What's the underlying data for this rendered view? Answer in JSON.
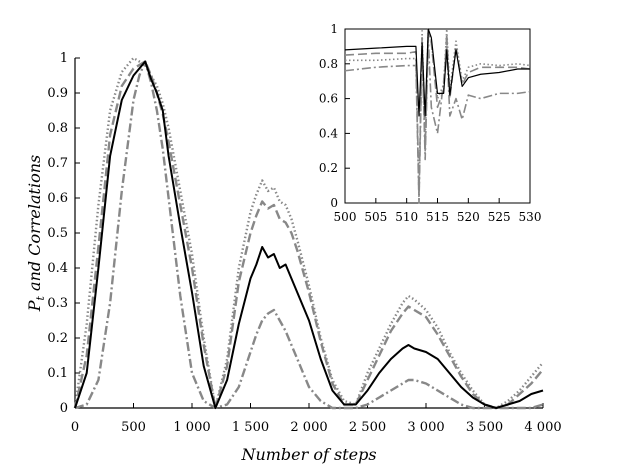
{
  "chart_data": [
    {
      "type": "line",
      "panel": "main",
      "xlabel": "Number of steps",
      "ylabel_main": "P",
      "ylabel_sub": "t",
      "ylabel_rest": " and Correlations",
      "xlim": [
        0,
        4000
      ],
      "ylim": [
        0,
        1
      ],
      "x_ticks": [
        0,
        500,
        1000,
        1500,
        2000,
        2500,
        3000,
        3500,
        4000
      ],
      "x_tick_labels": [
        "0",
        "500",
        "1 000",
        "1 500",
        "2 000",
        "2 500",
        "3 000",
        "3 500",
        "4 000"
      ],
      "y_ticks": [
        0,
        0.1,
        0.2,
        0.3,
        0.4,
        0.5,
        0.6,
        0.7,
        0.8,
        0.9,
        1
      ],
      "y_tick_labels": [
        "0",
        "0.1",
        "0.2",
        "0.3",
        "0.4",
        "0.5",
        "0.6",
        "0.7",
        "0.8",
        "0.9",
        "1"
      ],
      "grid": false,
      "legend": "none",
      "series": [
        {
          "style": "solid",
          "color": "#000000",
          "x": [
            0,
            100,
            200,
            300,
            400,
            500,
            550,
            600,
            650,
            700,
            750,
            800,
            900,
            1000,
            1100,
            1200,
            1300,
            1400,
            1500,
            1550,
            1600,
            1650,
            1700,
            1750,
            1800,
            1850,
            1900,
            2000,
            2100,
            2200,
            2300,
            2400,
            2500,
            2600,
            2700,
            2800,
            2850,
            2900,
            3000,
            3100,
            3200,
            3300,
            3400,
            3500,
            3600,
            3700,
            3800,
            3900,
            4000
          ],
          "y": [
            0,
            0.1,
            0.4,
            0.72,
            0.88,
            0.95,
            0.97,
            0.99,
            0.94,
            0.9,
            0.85,
            0.72,
            0.52,
            0.33,
            0.12,
            0.0,
            0.08,
            0.24,
            0.37,
            0.41,
            0.46,
            0.43,
            0.44,
            0.4,
            0.41,
            0.37,
            0.33,
            0.25,
            0.14,
            0.05,
            0.01,
            0.01,
            0.05,
            0.1,
            0.14,
            0.17,
            0.18,
            0.17,
            0.16,
            0.14,
            0.1,
            0.06,
            0.03,
            0.01,
            0.0,
            0.01,
            0.02,
            0.04,
            0.05
          ]
        },
        {
          "style": "dashed",
          "color": "#888888",
          "x": [
            0,
            100,
            200,
            300,
            400,
            500,
            550,
            600,
            650,
            700,
            750,
            800,
            900,
            1000,
            1100,
            1200,
            1300,
            1400,
            1500,
            1550,
            1600,
            1650,
            1700,
            1750,
            1800,
            1850,
            1900,
            2000,
            2100,
            2200,
            2300,
            2400,
            2500,
            2600,
            2700,
            2800,
            2850,
            2900,
            3000,
            3100,
            3200,
            3300,
            3400,
            3500,
            3600,
            3700,
            3800,
            3900,
            4000
          ],
          "y": [
            0,
            0.15,
            0.46,
            0.78,
            0.92,
            0.97,
            0.98,
            0.99,
            0.95,
            0.9,
            0.84,
            0.76,
            0.58,
            0.4,
            0.18,
            0.0,
            0.12,
            0.36,
            0.5,
            0.55,
            0.59,
            0.57,
            0.58,
            0.54,
            0.53,
            0.5,
            0.45,
            0.33,
            0.19,
            0.07,
            0.01,
            0.01,
            0.08,
            0.15,
            0.22,
            0.27,
            0.29,
            0.28,
            0.26,
            0.21,
            0.15,
            0.09,
            0.04,
            0.01,
            0.0,
            0.01,
            0.04,
            0.07,
            0.11
          ]
        },
        {
          "style": "dotted",
          "color": "#888888",
          "x": [
            0,
            100,
            200,
            300,
            400,
            500,
            550,
            600,
            650,
            700,
            750,
            800,
            900,
            1000,
            1100,
            1200,
            1300,
            1400,
            1500,
            1550,
            1600,
            1650,
            1700,
            1750,
            1800,
            1850,
            1900,
            2000,
            2100,
            2200,
            2300,
            2400,
            2500,
            2600,
            2700,
            2800,
            2850,
            2900,
            3000,
            3100,
            3200,
            3300,
            3400,
            3500,
            3600,
            3700,
            3800,
            3900,
            4000
          ],
          "y": [
            0,
            0.24,
            0.58,
            0.85,
            0.96,
            1.0,
            0.99,
            0.98,
            0.95,
            0.92,
            0.87,
            0.8,
            0.62,
            0.44,
            0.2,
            0.0,
            0.14,
            0.4,
            0.56,
            0.61,
            0.65,
            0.62,
            0.63,
            0.59,
            0.58,
            0.54,
            0.48,
            0.35,
            0.2,
            0.08,
            0.02,
            0.01,
            0.1,
            0.17,
            0.24,
            0.3,
            0.32,
            0.31,
            0.28,
            0.23,
            0.16,
            0.1,
            0.05,
            0.01,
            0.0,
            0.02,
            0.05,
            0.09,
            0.13
          ]
        },
        {
          "style": "dashdot",
          "color": "#888888",
          "x": [
            0,
            100,
            200,
            300,
            400,
            500,
            550,
            600,
            650,
            700,
            750,
            800,
            900,
            1000,
            1100,
            1200,
            1300,
            1400,
            1500,
            1550,
            1600,
            1650,
            1700,
            1750,
            1800,
            1850,
            1900,
            2000,
            2100,
            2200,
            2300,
            2400,
            2500,
            2600,
            2700,
            2800,
            2850,
            2900,
            3000,
            3100,
            3200,
            3300,
            3400,
            3500,
            3600,
            3700,
            3800,
            3900,
            4000
          ],
          "y": [
            0,
            0.01,
            0.08,
            0.3,
            0.62,
            0.88,
            0.95,
            0.99,
            0.93,
            0.85,
            0.74,
            0.6,
            0.32,
            0.1,
            0.02,
            0.0,
            0.01,
            0.06,
            0.16,
            0.21,
            0.25,
            0.27,
            0.28,
            0.25,
            0.22,
            0.18,
            0.14,
            0.06,
            0.02,
            0.0,
            0.0,
            0.0,
            0.01,
            0.03,
            0.05,
            0.07,
            0.08,
            0.08,
            0.07,
            0.05,
            0.03,
            0.01,
            0.0,
            0.0,
            0.0,
            0.0,
            0.0,
            0.0,
            0.01
          ]
        }
      ]
    },
    {
      "type": "line",
      "panel": "inset",
      "xlim": [
        500,
        530
      ],
      "ylim": [
        0,
        1
      ],
      "x_ticks": [
        500,
        505,
        510,
        515,
        520,
        525,
        530
      ],
      "x_tick_labels": [
        "500",
        "505",
        "510",
        "515",
        "520",
        "525",
        "530"
      ],
      "y_ticks": [
        0,
        0.2,
        0.4,
        0.6,
        0.8,
        1
      ],
      "y_tick_labels": [
        "0",
        "0.2",
        "0.4",
        "0.6",
        "0.8",
        "1"
      ],
      "grid": false,
      "legend": "none",
      "series": [
        {
          "style": "solid",
          "color": "#000000",
          "x": [
            500,
            505,
            510,
            511.5,
            512,
            512.5,
            513,
            513.5,
            514,
            515,
            516,
            516.5,
            517,
            518,
            519,
            520,
            522,
            525,
            528,
            530
          ],
          "y": [
            0.88,
            0.89,
            0.9,
            0.9,
            0.5,
            0.92,
            0.5,
            1.0,
            0.95,
            0.63,
            0.63,
            0.88,
            0.62,
            0.88,
            0.67,
            0.72,
            0.74,
            0.75,
            0.77,
            0.77
          ]
        },
        {
          "style": "dashed",
          "color": "#888888",
          "x": [
            500,
            505,
            510,
            511.5,
            512,
            512.5,
            513,
            513.5,
            514,
            515,
            516,
            516.5,
            517,
            518,
            519,
            520,
            522,
            525,
            528,
            530
          ],
          "y": [
            0.85,
            0.86,
            0.86,
            0.87,
            0.05,
            0.95,
            0.3,
            0.98,
            0.92,
            0.55,
            0.65,
            0.97,
            0.6,
            0.9,
            0.68,
            0.75,
            0.78,
            0.78,
            0.78,
            0.77
          ]
        },
        {
          "style": "dotted",
          "color": "#888888",
          "x": [
            500,
            505,
            510,
            511.5,
            512,
            512.5,
            513,
            513.5,
            514,
            515,
            516,
            516.5,
            517,
            518,
            519,
            520,
            522,
            525,
            528,
            530
          ],
          "y": [
            0.82,
            0.82,
            0.83,
            0.83,
            0.02,
            0.99,
            0.35,
            1.0,
            0.93,
            0.6,
            0.68,
            1.0,
            0.65,
            0.93,
            0.7,
            0.78,
            0.8,
            0.79,
            0.8,
            0.79
          ]
        },
        {
          "style": "dashdot",
          "color": "#888888",
          "x": [
            500,
            505,
            510,
            511.5,
            512,
            512.5,
            513,
            513.5,
            514,
            515,
            516,
            516.5,
            517,
            518,
            519,
            520,
            522,
            525,
            528,
            530
          ],
          "y": [
            0.76,
            0.78,
            0.79,
            0.79,
            0.0,
            0.9,
            0.25,
            0.95,
            0.55,
            0.4,
            0.7,
            0.9,
            0.5,
            0.6,
            0.48,
            0.62,
            0.6,
            0.63,
            0.63,
            0.64
          ]
        }
      ]
    }
  ]
}
